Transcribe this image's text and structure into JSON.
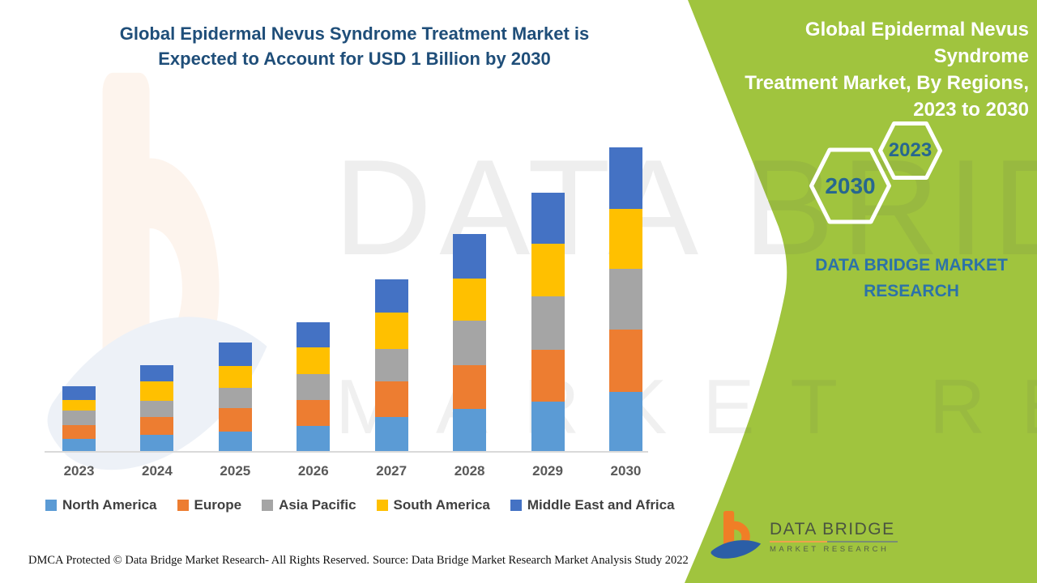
{
  "left_panel": {
    "title_lines": [
      "Global Epidermal Nevus Syndrome Treatment Market is",
      "Expected to Account for USD 1 Billion by 2030"
    ]
  },
  "right_panel": {
    "title_lines": [
      "Global Epidermal Nevus Syndrome",
      "Treatment Market, By Regions,",
      "2023 to 2030"
    ],
    "hexagon_front_year": "2023",
    "hexagon_back_year": "2030",
    "brand_caption": "DATA BRIDGE MARKET RESEARCH",
    "panel_color": "#A0C43E"
  },
  "chart_data": {
    "type": "bar",
    "stacked": true,
    "title": "Global Epidermal Nevus Syndrome Treatment Market is Expected to Account for USD 1 Billion by 2030",
    "unit": "USD Million (estimated; 2030 total = USD 1 Billion per title)",
    "categories": [
      "2023",
      "2024",
      "2025",
      "2026",
      "2027",
      "2028",
      "2029",
      "2030"
    ],
    "series": [
      {
        "name": "North America",
        "color": "#5B9BD5",
        "values": [
          40,
          53,
          64,
          83,
          112,
          139,
          163,
          195
        ]
      },
      {
        "name": "Europe",
        "color": "#ED7D31",
        "values": [
          45,
          59,
          77,
          85,
          117,
          144,
          171,
          205
        ]
      },
      {
        "name": "Asia Pacific",
        "color": "#A5A5A5",
        "values": [
          48,
          53,
          67,
          85,
          107,
          147,
          176,
          200
        ]
      },
      {
        "name": "South America",
        "color": "#FFC000",
        "values": [
          35,
          64,
          72,
          88,
          120,
          139,
          173,
          197
        ]
      },
      {
        "name": "Middle East and Africa",
        "color": "#4472C4",
        "values": [
          45,
          53,
          77,
          83,
          109,
          147,
          168,
          203
        ]
      }
    ],
    "totals": [
      213,
      282,
      357,
      424,
      565,
      716,
      851,
      1000
    ],
    "ylim": [
      0,
      1000
    ],
    "y_axis_shown": false,
    "gridlines": false,
    "legend_position": "bottom"
  },
  "footer": {
    "dmca": "DMCA Protected © Data Bridge Market Research- All Rights Reserved.",
    "source": "Source: Data Bridge Market Research Market Analysis Study 2022"
  },
  "logo": {
    "line1": "DATA BRIDGE",
    "line2": "MARKET  RESEARCH"
  },
  "watermark": {
    "line1": "DATA BRIDGE",
    "line2": "MARKET RESEARCH"
  }
}
